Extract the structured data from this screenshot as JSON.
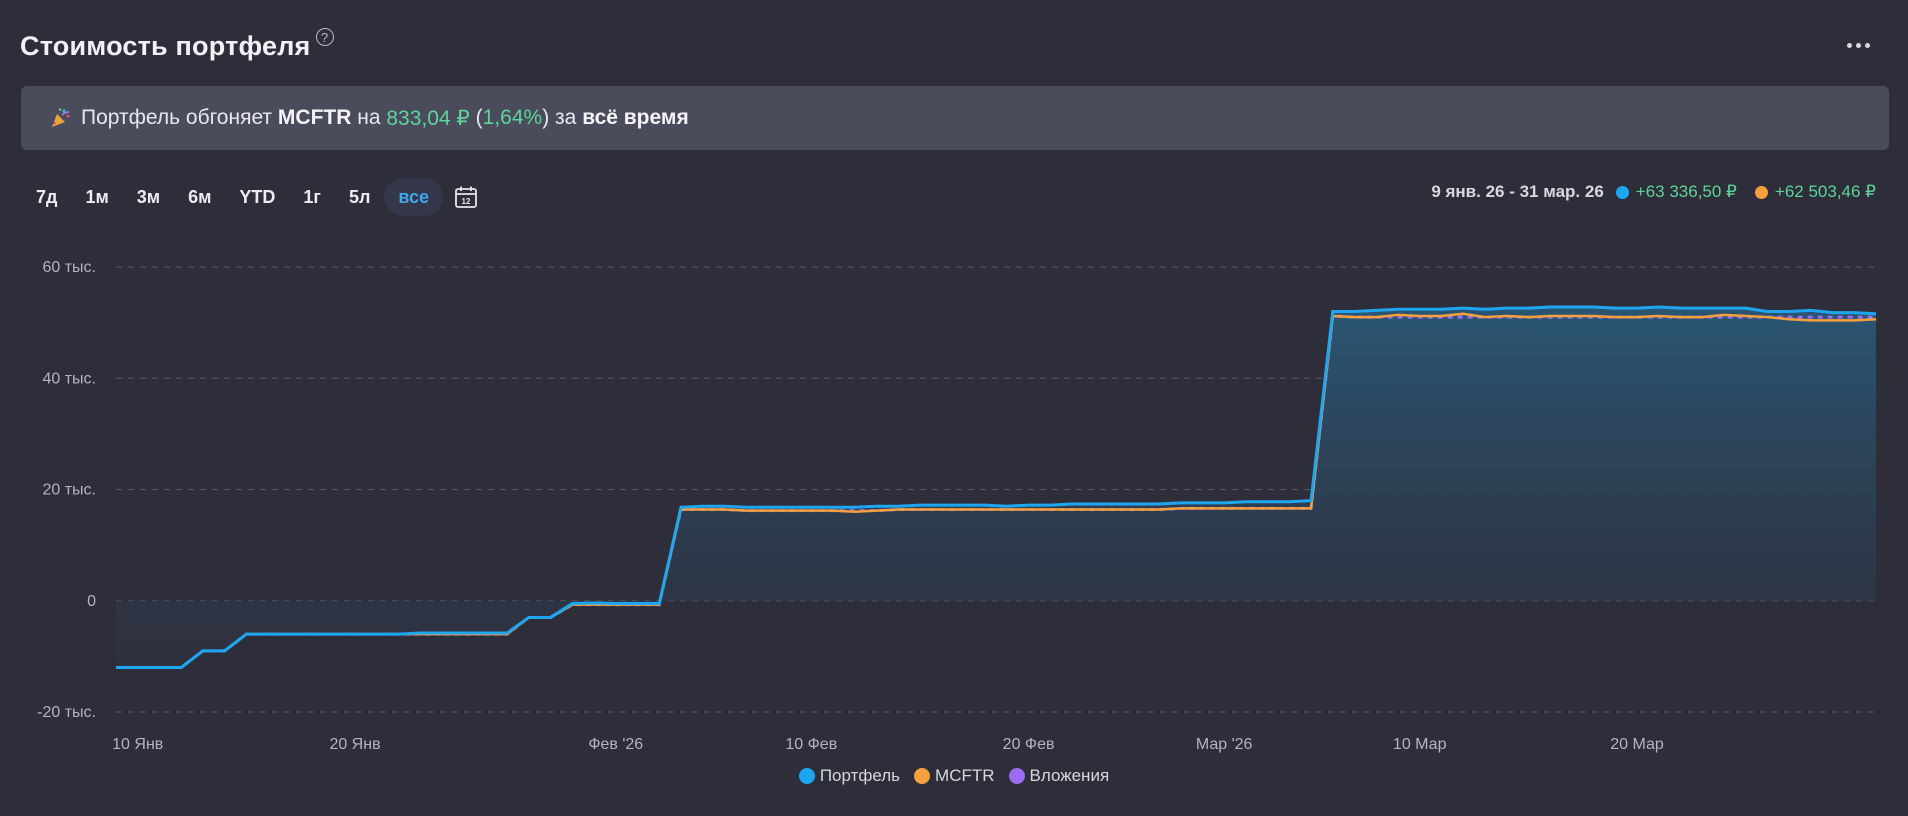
{
  "header": {
    "title": "Стоимость портфеля",
    "help_icon": "question-circle-icon",
    "menu_icon": "more-horizontal-icon"
  },
  "banner": {
    "icon": "party-popper-icon",
    "text_1": "Портфель обгоняет",
    "benchmark": "MCFTR",
    "text_2": "на",
    "amount": "833,04 ₽",
    "paren_open": "(",
    "percent": "1,64%",
    "paren_close": ")",
    "text_3": "за",
    "period": "всё время"
  },
  "periods": [
    "7д",
    "1м",
    "3м",
    "6м",
    "YTD",
    "1г",
    "5л",
    "все"
  ],
  "active_period": "все",
  "range": {
    "dates": "9 янв. 26 - 31 мар. 26",
    "portfolio_change": "+63 336,50 ₽",
    "benchmark_change": "+62 503,46 ₽"
  },
  "colors": {
    "portfolio": "#1ea7f0",
    "benchmark": "#f5a03c",
    "investments": "#9b6cf0",
    "positive": "#5ed49a",
    "accent": "#3fa8ef"
  },
  "legend": [
    {
      "name": "Портфель",
      "color": "#1ea7f0"
    },
    {
      "name": "MCFTR",
      "color": "#f5a03c"
    },
    {
      "name": "Вложения",
      "color": "#9b6cf0"
    }
  ],
  "chart_data": {
    "type": "line",
    "y_ticks": [
      "60 тыс.",
      "40 тыс.",
      "20 тыс.",
      "0",
      "-20 тыс."
    ],
    "y_tick_values": [
      60000,
      40000,
      20000,
      0,
      -20000
    ],
    "ylim": [
      -20000,
      60000
    ],
    "x_ticks": [
      "10 Янв",
      "20 Янв",
      "Фев '26",
      "10 Фев",
      "20 Фев",
      "Мар '26",
      "10 Мар",
      "20 Мар"
    ],
    "x_tick_days": [
      1,
      11,
      23,
      32,
      42,
      51,
      60,
      70
    ],
    "xlim": [
      0,
      81
    ],
    "grid": true,
    "legend_position": "bottom-center",
    "x": [
      0,
      1,
      2,
      3,
      4,
      5,
      6,
      7,
      8,
      9,
      10,
      11,
      12,
      13,
      14,
      15,
      16,
      17,
      18,
      19,
      20,
      21,
      22,
      23,
      24,
      25,
      26,
      27,
      28,
      29,
      30,
      31,
      32,
      33,
      34,
      35,
      36,
      37,
      38,
      39,
      40,
      41,
      42,
      43,
      44,
      45,
      46,
      47,
      48,
      49,
      50,
      51,
      52,
      53,
      54,
      55,
      56,
      57,
      58,
      59,
      60,
      61,
      62,
      63,
      64,
      65,
      66,
      67,
      68,
      69,
      70,
      71,
      72,
      73,
      74,
      75,
      76,
      77,
      78,
      79,
      80,
      81
    ],
    "series": [
      {
        "name": "Портфель",
        "values": [
          -12000,
          -12000,
          -12000,
          -12000,
          -9000,
          -9000,
          -6000,
          -6000,
          -6000,
          -6000,
          -6000,
          -6000,
          -6000,
          -6000,
          -5800,
          -5800,
          -5800,
          -5800,
          -5800,
          -3000,
          -3000,
          -500,
          -400,
          -500,
          -500,
          -500,
          16800,
          17000,
          17000,
          16800,
          16800,
          16800,
          16800,
          16800,
          16800,
          17000,
          17000,
          17200,
          17200,
          17200,
          17200,
          17000,
          17200,
          17200,
          17400,
          17400,
          17400,
          17400,
          17400,
          17600,
          17600,
          17600,
          17800,
          17800,
          17800,
          18000,
          52000,
          52000,
          52200,
          52400,
          52400,
          52400,
          52600,
          52400,
          52600,
          52600,
          52800,
          52800,
          52800,
          52600,
          52600,
          52800,
          52600,
          52600,
          52600,
          52600,
          52000,
          52000,
          52200,
          51800,
          51800,
          51600
        ],
        "values_note_omitted": null
      },
      {
        "name": "MCFTR",
        "values": [
          -12000,
          -12000,
          -12000,
          -12000,
          -9000,
          -9000,
          -6000,
          -6000,
          -6000,
          -6000,
          -6000,
          -6000,
          -6000,
          -6000,
          -6000,
          -6000,
          -6000,
          -6000,
          -6000,
          -3000,
          -3000,
          -700,
          -700,
          -700,
          -700,
          -700,
          16400,
          16400,
          16400,
          16200,
          16200,
          16200,
          16200,
          16200,
          16000,
          16200,
          16400,
          16400,
          16400,
          16400,
          16400,
          16400,
          16400,
          16400,
          16400,
          16400,
          16400,
          16400,
          16400,
          16600,
          16600,
          16600,
          16600,
          16600,
          16600,
          16600,
          51200,
          51000,
          51000,
          51400,
          51200,
          51200,
          51600,
          51000,
          51200,
          51000,
          51200,
          51200,
          51200,
          51000,
          51000,
          51200,
          51000,
          51000,
          51400,
          51200,
          51000,
          50600,
          50400,
          50400,
          50400,
          50600
        ]
      },
      {
        "name": "Вложения",
        "values": [
          -12000,
          -12000,
          -12000,
          -12000,
          -9000,
          -9000,
          -6000,
          -6000,
          -6000,
          -6000,
          -6000,
          -6000,
          -6000,
          -6000,
          -6000,
          -6000,
          -6000,
          -6000,
          -6000,
          -3000,
          -3000,
          -700,
          -700,
          -700,
          -700,
          -700,
          16400,
          16400,
          16400,
          16200,
          16200,
          16200,
          16200,
          16200,
          16200,
          16200,
          16400,
          16400,
          16400,
          16400,
          16400,
          16400,
          16400,
          16400,
          16400,
          16400,
          16400,
          16400,
          16400,
          16600,
          16600,
          16600,
          16600,
          16600,
          16600,
          16600,
          51200,
          51000,
          51000,
          51000,
          51000,
          51000,
          51000,
          51000,
          51000,
          51000,
          51000,
          51000,
          51000,
          51000,
          51000,
          51000,
          51000,
          51000,
          51000,
          51000,
          51000,
          51000,
          51000,
          51000,
          51000,
          51000
        ]
      }
    ]
  }
}
